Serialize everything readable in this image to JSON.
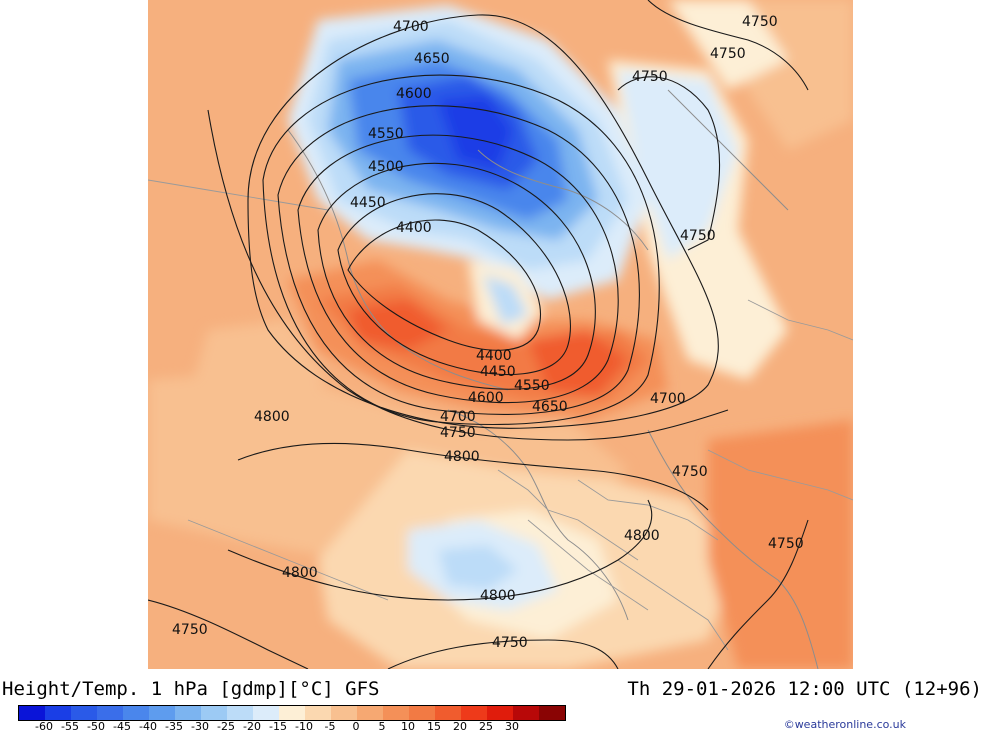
{
  "header": {
    "title": "Height/Temp. 1 hPa [gdmp][°C] GFS",
    "datetime": "Th 29-01-2026 12:00 UTC (12+96)"
  },
  "credit": "©weatheronline.co.uk",
  "legend": {
    "labels": [
      "-60",
      "-55",
      "-50",
      "-45",
      "-40",
      "-35",
      "-30",
      "-25",
      "-20",
      "-15",
      "-10",
      "-5",
      "0",
      "5",
      "10",
      "15",
      "20",
      "25",
      "30"
    ],
    "colors": [
      "#0a14d8",
      "#1a3ee6",
      "#2a5ae8",
      "#3a6eea",
      "#4a86ec",
      "#5e9cee",
      "#7cb4f0",
      "#9ccaf4",
      "#bcdcf8",
      "#dcecfa",
      "#fdefd6",
      "#fbd8b0",
      "#f8c090",
      "#f6a872",
      "#f49058",
      "#f27a44",
      "#f05c2e",
      "#ee3a1a",
      "#e01c0c",
      "#b80808",
      "#8a0404"
    ]
  },
  "map": {
    "contour_labels": [
      "4400",
      "4450",
      "4500",
      "4550",
      "4600",
      "4650",
      "4700",
      "4750",
      "4800"
    ],
    "contour_values": {
      "c4400": "4400",
      "c4450": "4450",
      "c4500": "4500",
      "c4550": "4550",
      "c4600": "4600",
      "c4650": "4650",
      "c4700": "4700",
      "c4750": "4750",
      "c4800": "4800"
    },
    "colors": {
      "background": "#f6b07e",
      "cold_core": "#2a5ae8",
      "cold_mid": "#5e9cee",
      "cold_edge": "#bcdcf8",
      "neutral": "#fdefd6",
      "warm": "#f49058",
      "hot": "#ee3a1a"
    }
  }
}
